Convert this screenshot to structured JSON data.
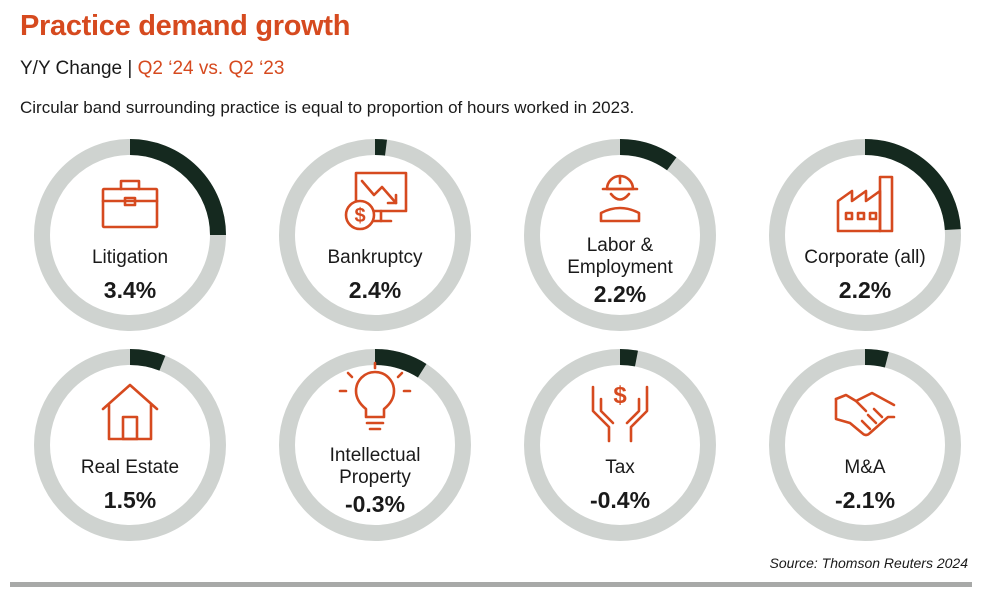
{
  "header": {
    "title": "Practice demand growth",
    "subtitle_prefix": "Y/Y Change |",
    "subtitle_period": "Q2 ‘24 vs. Q2 ‘23",
    "note": "Circular band surrounding practice is equal to proportion of hours worked in 2023."
  },
  "footer": {
    "source": "Source: Thomson Reuters 2024"
  },
  "colors": {
    "accent": "#d64a1f",
    "ring_track": "#cfd3d0",
    "ring_fill": "#15291f",
    "text": "#1a1a1a"
  },
  "chart_data": {
    "type": "donut-grid",
    "value_unit": "%",
    "band_meaning": "proportion of hours worked in 2023",
    "practices": [
      {
        "name": "Litigation",
        "label_lines": [
          "Litigation"
        ],
        "growth": 3.4,
        "growth_label": "3.4%",
        "share_of_hours": 0.25,
        "icon": "briefcase-icon"
      },
      {
        "name": "Bankruptcy",
        "label_lines": [
          "Bankruptcy"
        ],
        "growth": 2.4,
        "growth_label": "2.4%",
        "share_of_hours": 0.02,
        "icon": "falling-chart-dollar-icon"
      },
      {
        "name": "Labor & Employment",
        "label_lines": [
          "Labor &",
          "Employment"
        ],
        "growth": 2.2,
        "growth_label": "2.2%",
        "share_of_hours": 0.1,
        "icon": "hard-hat-worker-icon"
      },
      {
        "name": "Corporate (all)",
        "label_lines": [
          "Corporate (all)"
        ],
        "growth": 2.2,
        "growth_label": "2.2%",
        "share_of_hours": 0.24,
        "icon": "factory-icon"
      },
      {
        "name": "Real Estate",
        "label_lines": [
          "Real Estate"
        ],
        "growth": 1.5,
        "growth_label": "1.5%",
        "share_of_hours": 0.06,
        "icon": "house-icon"
      },
      {
        "name": "Intellectual Property",
        "label_lines": [
          "Intellectual",
          "Property"
        ],
        "growth": -0.3,
        "growth_label": "-0.3%",
        "share_of_hours": 0.09,
        "icon": "lightbulb-icon"
      },
      {
        "name": "Tax",
        "label_lines": [
          "Tax"
        ],
        "growth": -0.4,
        "growth_label": "-0.4%",
        "share_of_hours": 0.03,
        "icon": "hands-dollar-icon"
      },
      {
        "name": "M&A",
        "label_lines": [
          "M&A"
        ],
        "growth": -2.1,
        "growth_label": "-2.1%",
        "share_of_hours": 0.04,
        "icon": "handshake-icon"
      }
    ]
  }
}
